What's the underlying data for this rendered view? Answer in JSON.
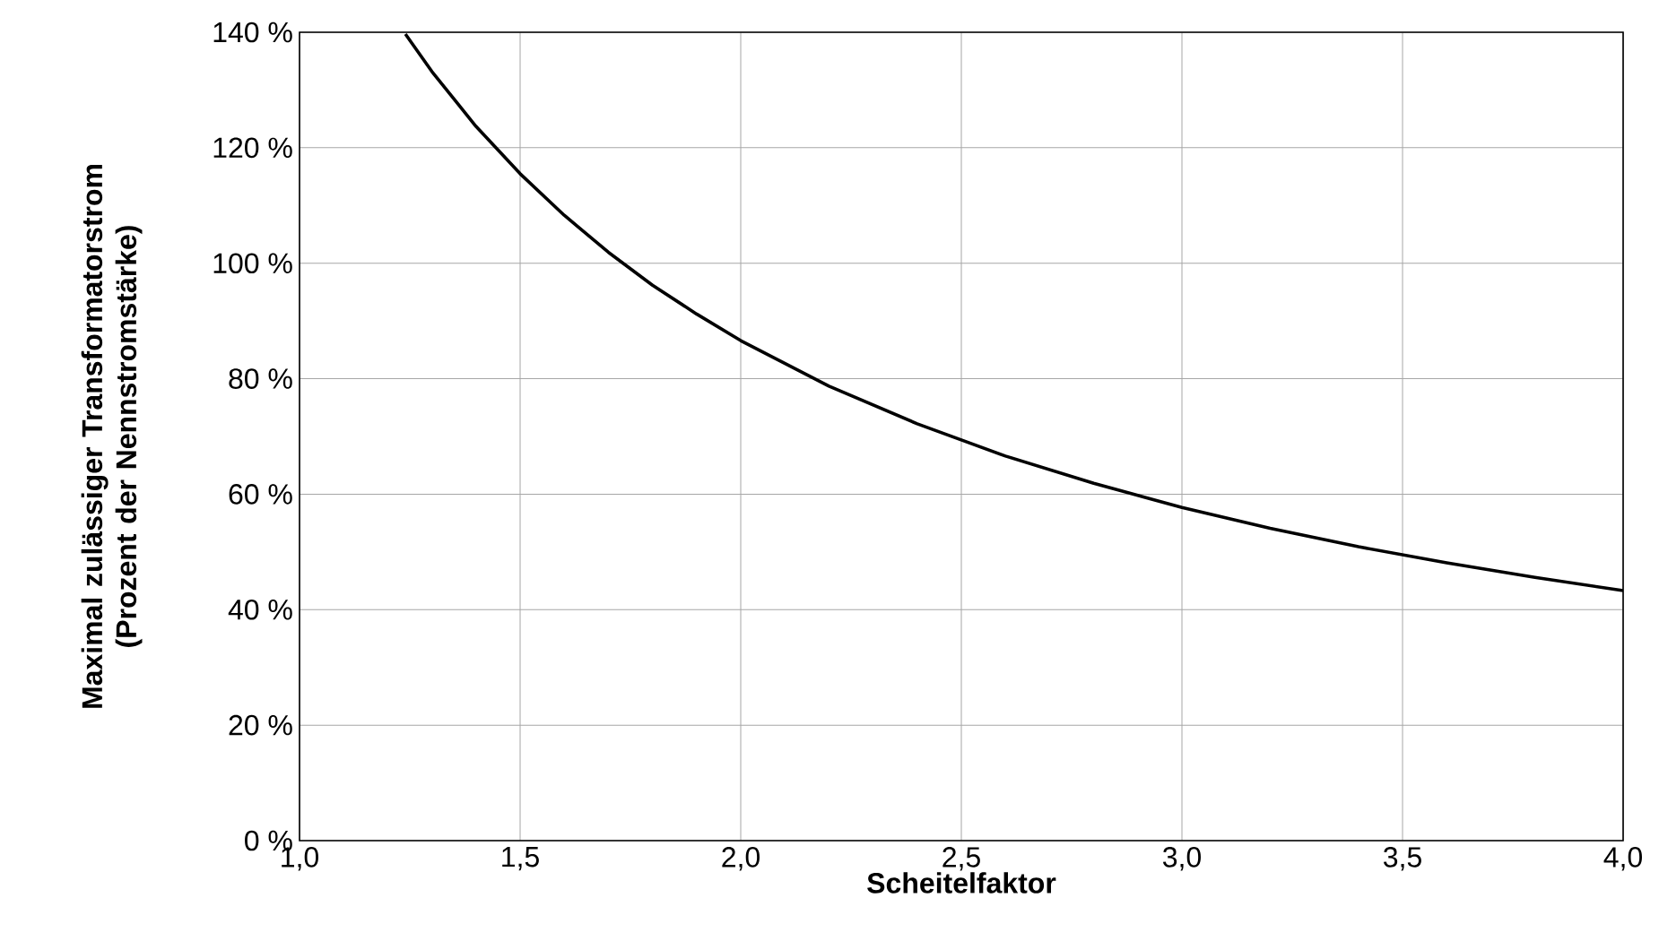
{
  "chart_data": {
    "type": "line",
    "xlabel": "Scheitelfaktor",
    "ylabel": "Maximal zulässiger Transformatorstrom (Prozent der Nennstromstärke)",
    "x": [
      1.24,
      1.3,
      1.4,
      1.5,
      1.6,
      1.7,
      1.8,
      1.9,
      2.0,
      2.2,
      2.4,
      2.6,
      2.8,
      3.0,
      3.2,
      3.4,
      3.6,
      3.8,
      4.0
    ],
    "values": [
      139.7,
      133.2,
      123.7,
      115.5,
      108.3,
      101.9,
      96.2,
      91.2,
      86.6,
      78.7,
      72.2,
      66.6,
      61.9,
      57.7,
      54.1,
      50.9,
      48.1,
      45.6,
      43.3
    ],
    "color": "#000000",
    "xlim": [
      1,
      4
    ],
    "ylim": [
      0,
      140
    ],
    "xticks": [
      {
        "value": 1,
        "label": "1,0"
      },
      {
        "value": 1.5,
        "label": "1,5"
      },
      {
        "value": 2,
        "label": "2,0"
      },
      {
        "value": 2.5,
        "label": "2,5"
      },
      {
        "value": 3,
        "label": "3,0"
      },
      {
        "value": 3.5,
        "label": "3,5"
      },
      {
        "value": 4,
        "label": "4,0"
      }
    ],
    "yticks": [
      {
        "value": 0,
        "label": "0 %"
      },
      {
        "value": 20,
        "label": "20 %"
      },
      {
        "value": 40,
        "label": "40 %"
      },
      {
        "value": 60,
        "label": "60 %"
      },
      {
        "value": 80,
        "label": "80 %"
      },
      {
        "value": 100,
        "label": "100 %"
      },
      {
        "value": 120,
        "label": "120 %"
      },
      {
        "value": 140,
        "label": "140 %"
      }
    ],
    "grid": true,
    "marker": "none",
    "line_style": "solid"
  }
}
